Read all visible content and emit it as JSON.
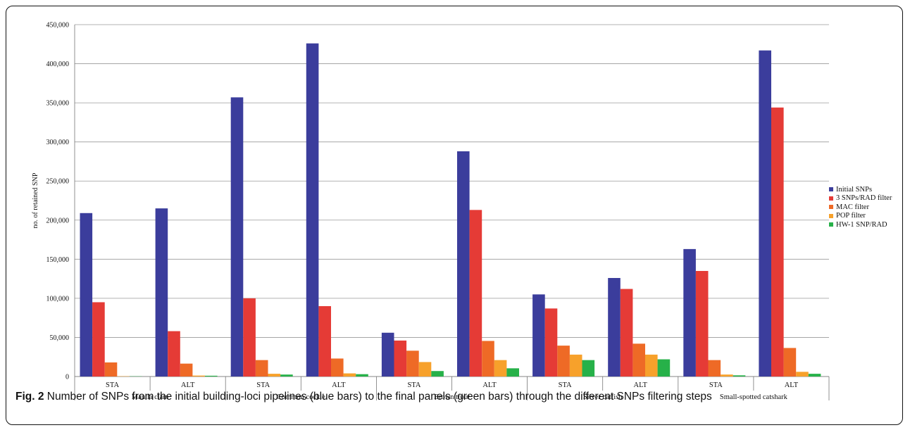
{
  "chart_data": {
    "type": "bar",
    "ylabel": "no. of retained SNP",
    "xlabel": "",
    "ylim": [
      0,
      450000
    ],
    "yticks": [
      0,
      50000,
      100000,
      150000,
      200000,
      250000,
      300000,
      350000,
      400000,
      450000
    ],
    "ytick_labels": [
      "0",
      "50,000",
      "100,000",
      "150,000",
      "200,000",
      "250,000",
      "300,000",
      "350,000",
      "400,000",
      "450,000"
    ],
    "grid": true,
    "legend_position": "right",
    "groups": [
      {
        "species": "Manila clam",
        "categories": [
          "STA",
          "ALT"
        ]
      },
      {
        "species": "Common cockle",
        "categories": [
          "STA",
          "ALT"
        ]
      },
      {
        "species": "Brown trout",
        "categories": [
          "STA",
          "ALT"
        ]
      },
      {
        "species": "Silver catfish",
        "categories": [
          "STA",
          "ALT"
        ]
      },
      {
        "species": "Small-spotted catshark",
        "categories": [
          "STA",
          "ALT"
        ]
      }
    ],
    "categories": [
      "STA",
      "ALT",
      "STA",
      "ALT",
      "STA",
      "ALT",
      "STA",
      "ALT",
      "STA",
      "ALT"
    ],
    "series": [
      {
        "name": "Initial SNPs",
        "color": "#3b3d9c",
        "values": [
          209000,
          215000,
          357000,
          426000,
          56000,
          288000,
          105000,
          126000,
          163000,
          417000
        ]
      },
      {
        "name": "3 SNPs/RAD filter",
        "color": "#e53b36",
        "values": [
          95000,
          58000,
          100000,
          90000,
          46000,
          213000,
          87000,
          112000,
          135000,
          344000
        ]
      },
      {
        "name": "MAC filter",
        "color": "#ee6a26",
        "values": [
          18000,
          16500,
          21000,
          23000,
          33000,
          45500,
          39500,
          42000,
          21000,
          36500
        ]
      },
      {
        "name": "POP filter",
        "color": "#f7a12b",
        "values": [
          400,
          1200,
          3500,
          4000,
          18500,
          21000,
          28000,
          28000,
          2500,
          6000
        ]
      },
      {
        "name": "HW-1 SNP/RAD",
        "color": "#27b149",
        "values": [
          300,
          1000,
          2500,
          3000,
          7000,
          10500,
          21000,
          22000,
          1500,
          3500
        ]
      }
    ]
  },
  "caption": {
    "label": "Fig. 2",
    "text": "Number of SNPs from the initial building-loci pipelines (blue bars) to the final panels (green bars) through the different SNPs filtering steps"
  }
}
